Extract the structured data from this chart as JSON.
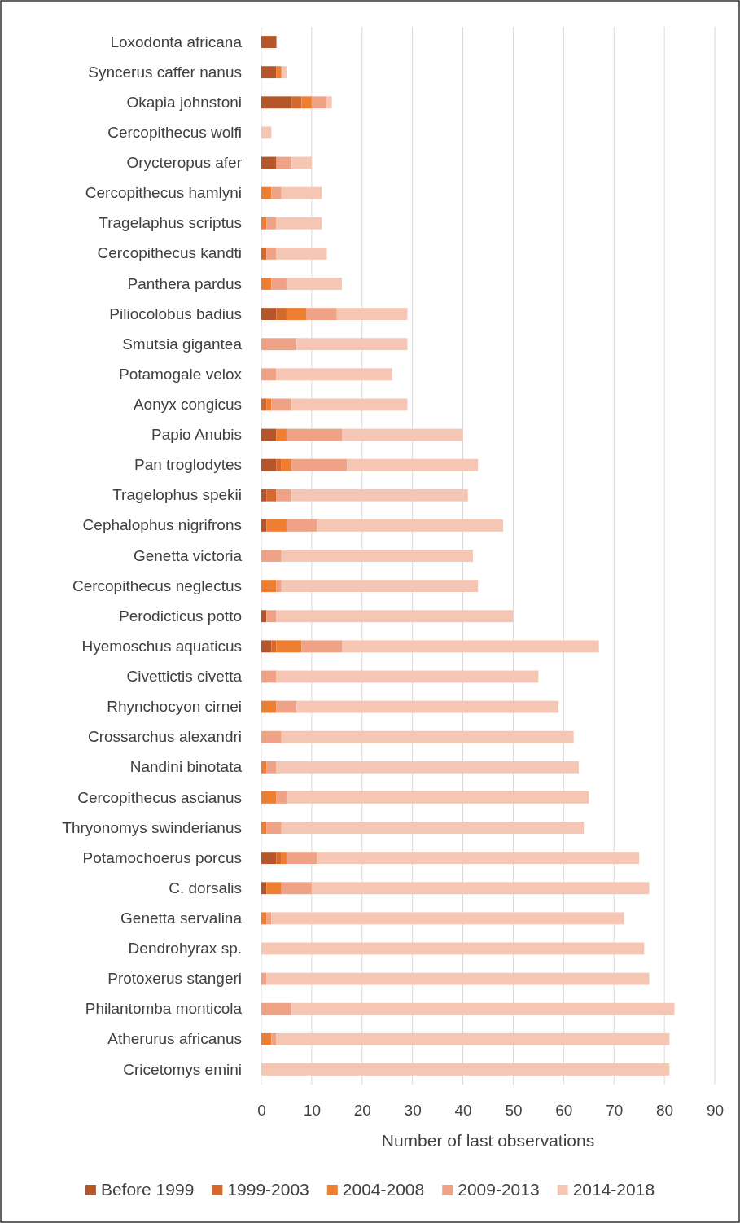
{
  "chart_data": {
    "type": "bar",
    "orientation": "horizontal",
    "stacked": true,
    "xlabel": "Number of  last observations",
    "categories": [
      "Loxodonta africana",
      "Syncerus caffer nanus",
      "Okapia johnstoni",
      "Cercopithecus wolfi",
      "Orycteropus afer",
      "Cercopithecus hamlyni",
      "Tragelaphus scriptus",
      "Cercopithecus kandti",
      "Panthera pardus",
      "Piliocolobus badius",
      "Smutsia gigantea",
      "Potamogale velox",
      "Aonyx congicus",
      "Papio Anubis",
      "Pan troglodytes",
      "Tragelophus spekii",
      "Cephalophus nigrifrons",
      "Genetta victoria",
      "Cercopithecus neglectus",
      "Perodicticus potto",
      "Hyemoschus aquaticus",
      "Civettictis civetta",
      "Rhynchocyon cirnei",
      "Crossarchus alexandri",
      "Nandini binotata",
      "Cercopithecus ascianus",
      "Thryonomys swinderianus",
      "Potamochoerus porcus",
      "C. dorsalis",
      "Genetta servalina",
      "Dendrohyrax sp.",
      "Protoxerus stangeri",
      "Philantomba monticola",
      "Atherurus africanus",
      "Cricetomys emini"
    ],
    "series": [
      {
        "name": "Before 1999",
        "color": "#b4562a",
        "values": [
          3,
          3,
          6,
          0,
          3,
          0,
          0,
          0,
          0,
          3,
          0,
          0,
          0,
          3,
          3,
          1,
          1,
          0,
          0,
          1,
          2,
          0,
          0,
          0,
          0,
          0,
          0,
          3,
          1,
          0,
          0,
          0,
          0,
          0,
          0
        ]
      },
      {
        "name": "1999-2003",
        "color": "#d4692e",
        "values": [
          0,
          0,
          2,
          0,
          0,
          0,
          0,
          1,
          0,
          2,
          0,
          0,
          1,
          0,
          1,
          2,
          0,
          0,
          0,
          0,
          1,
          0,
          0,
          0,
          0,
          0,
          0,
          1,
          0,
          0,
          0,
          0,
          0,
          0,
          0
        ]
      },
      {
        "name": "2004-2008",
        "color": "#ee7e32",
        "values": [
          0,
          1,
          2,
          0,
          0,
          2,
          1,
          0,
          2,
          4,
          0,
          0,
          1,
          2,
          2,
          0,
          4,
          0,
          3,
          0,
          5,
          0,
          3,
          0,
          1,
          3,
          1,
          1,
          3,
          1,
          0,
          0,
          0,
          2,
          0
        ]
      },
      {
        "name": "2009-2013",
        "color": "#f0a286",
        "values": [
          0,
          0,
          3,
          0,
          3,
          2,
          2,
          2,
          3,
          6,
          7,
          3,
          4,
          11,
          11,
          3,
          6,
          4,
          1,
          2,
          8,
          3,
          4,
          4,
          2,
          2,
          3,
          6,
          6,
          1,
          0,
          1,
          6,
          1,
          0
        ]
      },
      {
        "name": "2014-2018",
        "color": "#f6c6b5",
        "values": [
          0,
          1,
          1,
          2,
          4,
          8,
          9,
          10,
          11,
          14,
          22,
          23,
          23,
          24,
          26,
          35,
          37,
          38,
          39,
          47,
          51,
          52,
          52,
          58,
          60,
          60,
          60,
          64,
          67,
          70,
          76,
          76,
          76,
          78,
          81
        ]
      }
    ],
    "xlim": [
      0,
      90
    ],
    "xticks": [
      0,
      10,
      20,
      30,
      40,
      50,
      60,
      70,
      80,
      90
    ],
    "grid": "x",
    "legend": "bottom"
  }
}
